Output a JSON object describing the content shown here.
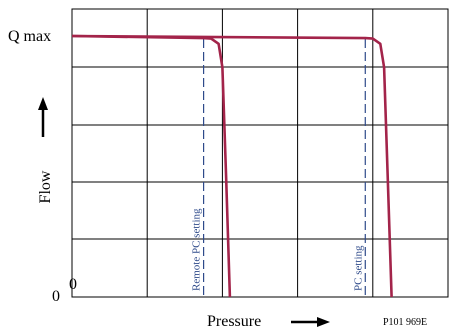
{
  "chart_data": {
    "type": "line",
    "xlabel": "Pressure",
    "ylabel": "Flow",
    "y_top_label": "Q max",
    "y_zero_label": "0",
    "x_zero_label": "0",
    "figure_code": "P101 969E",
    "xlim": [
      0,
      1
    ],
    "ylim": [
      0,
      1
    ],
    "grid": true,
    "series": [
      {
        "name": "Remote PC setting",
        "color": "#a3244a",
        "x": [
          0.0,
          0.35,
          0.37,
          0.39,
          0.4,
          0.41,
          0.42
        ],
        "y": [
          1.0,
          0.992,
          0.99,
          0.97,
          0.88,
          0.45,
          0.0
        ]
      },
      {
        "name": "PC setting",
        "color": "#a3244a",
        "x": [
          0.0,
          0.78,
          0.8,
          0.82,
          0.83,
          0.84,
          0.85
        ],
        "y": [
          1.0,
          0.992,
          0.99,
          0.97,
          0.88,
          0.45,
          0.0
        ]
      }
    ],
    "setpoints": [
      {
        "label": "Remote PC setting",
        "x": 0.35
      },
      {
        "label": "PC setting",
        "x": 0.78
      }
    ]
  },
  "colors": {
    "curve": "#a3244a",
    "setpoint_line": "#2e4a8a",
    "grid": "#000000",
    "text": "#000000",
    "arrow": "#000000"
  }
}
